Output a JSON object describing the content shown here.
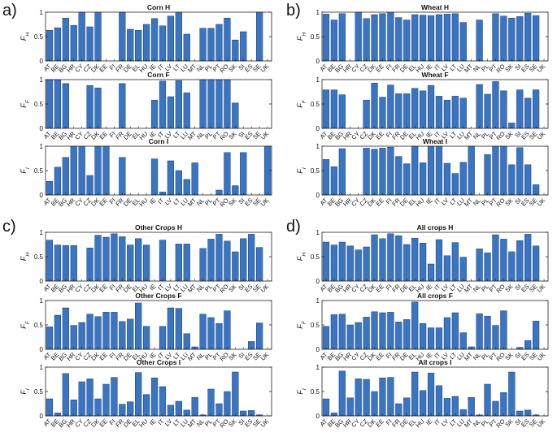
{
  "panel_letters": [
    "a)",
    "b)",
    "c)",
    "d)"
  ],
  "countries": [
    "AT",
    "BE",
    "BG",
    "HR",
    "CY",
    "CZ",
    "DK",
    "EE",
    "FI",
    "FR",
    "DE",
    "EL",
    "HU",
    "IE",
    "IT",
    "LV",
    "LT",
    "LU",
    "MT",
    "NL",
    "PL",
    "PT",
    "RO",
    "SK",
    "SI",
    "ES",
    "SE",
    "UK"
  ],
  "colors": {
    "bar": "#3a75c4",
    "bar_edge": "#1c3c6e",
    "axis": "#222222"
  },
  "chart_data": [
    {
      "type": "bar",
      "panel": "a",
      "title": "Corn H",
      "ylabel": "F_H",
      "ylim": [
        0,
        1
      ],
      "yticks": [
        0,
        0.5,
        1
      ],
      "values": [
        0.63,
        0.68,
        0.88,
        0.73,
        1.0,
        0.7,
        1.0,
        0,
        0,
        1.0,
        0.65,
        0.63,
        0.75,
        0.87,
        0.72,
        0.92,
        1.0,
        0.55,
        0,
        0.67,
        0.67,
        0.75,
        0.88,
        0.43,
        0.6,
        0,
        1.0,
        0
      ]
    },
    {
      "type": "bar",
      "panel": "a",
      "title": "Corn F",
      "ylabel": "F_F",
      "ylim": [
        0,
        1
      ],
      "yticks": [
        0,
        0.5,
        1
      ],
      "values": [
        1.0,
        1.0,
        0.92,
        0,
        0,
        0.88,
        0.83,
        0,
        0,
        0.92,
        0,
        0,
        0,
        0.58,
        0.97,
        0.65,
        0.98,
        0.73,
        0,
        1.0,
        1.0,
        1.0,
        1.0,
        0.52,
        0,
        0,
        0,
        0
      ]
    },
    {
      "type": "bar",
      "panel": "a",
      "title": "Corn I",
      "ylabel": "F_I",
      "ylim": [
        0,
        1
      ],
      "yticks": [
        0,
        0.5,
        1
      ],
      "values": [
        0.28,
        0.57,
        0.77,
        1.0,
        1.0,
        0.4,
        1.0,
        1.0,
        0,
        0.77,
        0,
        0,
        0,
        0.74,
        0.06,
        0.7,
        0.5,
        0.32,
        0.66,
        0,
        0,
        0.1,
        0.87,
        0.19,
        0.87,
        0,
        0,
        1.0
      ]
    },
    {
      "type": "bar",
      "panel": "b",
      "title": "Wheat H",
      "ylabel": "F_H",
      "ylim": [
        0,
        1
      ],
      "yticks": [
        0,
        0.5,
        1
      ],
      "values": [
        0.96,
        0.84,
        0.97,
        0,
        1.0,
        0.87,
        0.95,
        0.97,
        0.99,
        0.89,
        0.84,
        0.95,
        0.94,
        0.93,
        0.95,
        0.96,
        0.97,
        0.79,
        0,
        0.84,
        0,
        0.97,
        0.92,
        0.88,
        0.91,
        0.98,
        0.93,
        0
      ]
    },
    {
      "type": "bar",
      "panel": "b",
      "title": "Wheat F",
      "ylabel": "F_F",
      "ylim": [
        0,
        1
      ],
      "yticks": [
        0,
        0.5,
        1
      ],
      "values": [
        0.79,
        0.79,
        0.69,
        0,
        0,
        0.58,
        0.93,
        0.64,
        0.89,
        0.71,
        0.71,
        0.82,
        0.77,
        0.88,
        0.66,
        0.58,
        0.66,
        0.62,
        0,
        0.9,
        0.7,
        0.96,
        0.77,
        0.11,
        0.79,
        0.62,
        0.79,
        0
      ]
    },
    {
      "type": "bar",
      "panel": "b",
      "title": "Wheat I",
      "ylabel": "F_I",
      "ylim": [
        0,
        1
      ],
      "yticks": [
        0,
        0.5,
        1
      ],
      "values": [
        0.73,
        0.58,
        0.95,
        0,
        0,
        0.96,
        0.94,
        0.96,
        0.98,
        0.79,
        0.64,
        1.0,
        0.66,
        1.0,
        1.0,
        0.65,
        0.44,
        0.67,
        1.0,
        0,
        0.83,
        1.0,
        1.0,
        0.62,
        0.97,
        0.62,
        0.21,
        0
      ]
    },
    {
      "type": "bar",
      "panel": "c",
      "title": "Other Crops H",
      "ylabel": "F_H",
      "ylim": [
        0,
        1
      ],
      "yticks": [
        0,
        0.5,
        1
      ],
      "values": [
        0.84,
        0.74,
        0.73,
        0.73,
        0,
        0.68,
        0.94,
        0.9,
        0.97,
        0.91,
        0.74,
        0.87,
        0.74,
        0,
        0.84,
        0,
        0.76,
        0.76,
        0,
        0.67,
        0.86,
        0.96,
        0.82,
        0.6,
        0.87,
        0.96,
        0.69,
        0
      ]
    },
    {
      "type": "bar",
      "panel": "c",
      "title": "Other Crops F",
      "ylabel": "F_F",
      "ylim": [
        0,
        1
      ],
      "yticks": [
        0,
        0.5,
        1
      ],
      "values": [
        0.46,
        0.7,
        0.85,
        0.49,
        0.55,
        0.72,
        0.67,
        0.76,
        0.76,
        0.57,
        0.62,
        0.95,
        0.47,
        0,
        0.47,
        0.85,
        0.84,
        0.32,
        0.05,
        0.72,
        0.65,
        0.53,
        0.79,
        0,
        0,
        0.16,
        0.54,
        0
      ]
    },
    {
      "type": "bar",
      "panel": "c",
      "title": "Other Crops I",
      "ylabel": "F_I",
      "ylim": [
        0,
        1
      ],
      "yticks": [
        0,
        0.5,
        1
      ],
      "values": [
        0.35,
        0.06,
        0.87,
        0.33,
        0.7,
        0.76,
        0.35,
        0.65,
        0.79,
        0.24,
        0.29,
        0.89,
        0.44,
        0.78,
        0.6,
        0.22,
        0.3,
        0.12,
        0.38,
        0.02,
        0.55,
        0.25,
        0.5,
        0.9,
        0.1,
        0.11,
        0.02,
        0
      ]
    },
    {
      "type": "bar",
      "panel": "d",
      "title": "All crops H",
      "ylabel": "F_H",
      "ylim": [
        0,
        1
      ],
      "yticks": [
        0,
        0.5,
        1
      ],
      "values": [
        0.8,
        0.74,
        0.8,
        0.72,
        0.64,
        0.7,
        0.95,
        0.87,
        0.97,
        0.93,
        0.75,
        0.88,
        0.78,
        0.35,
        0.85,
        0.52,
        0.79,
        0.49,
        0,
        0.66,
        0.58,
        0.95,
        0.86,
        0.6,
        0.83,
        0.96,
        0.72,
        0
      ]
    },
    {
      "type": "bar",
      "panel": "d",
      "title": "All crops F",
      "ylabel": "F_F",
      "ylim": [
        0,
        1
      ],
      "yticks": [
        0,
        0.5,
        1
      ],
      "values": [
        0.47,
        0.71,
        0.72,
        0.5,
        0.55,
        0.66,
        0.77,
        0.75,
        0.76,
        0.56,
        0.61,
        0.97,
        0.53,
        0.44,
        0.44,
        0.65,
        0.75,
        0.34,
        0.05,
        0.73,
        0.68,
        0.49,
        0.79,
        0,
        0.04,
        0.18,
        0.58,
        0
      ]
    },
    {
      "type": "bar",
      "panel": "d",
      "title": "All crops I",
      "ylabel": "F_I",
      "ylim": [
        0,
        1
      ],
      "yticks": [
        0,
        0.5,
        1
      ],
      "values": [
        0.35,
        0.06,
        0.92,
        0.37,
        0.76,
        0.75,
        0.5,
        0.78,
        0.79,
        0.25,
        0.37,
        0.9,
        0.52,
        0.88,
        0.62,
        0.36,
        0.4,
        0.13,
        0.38,
        0.02,
        0.65,
        0.3,
        0.48,
        0.9,
        0.1,
        0.12,
        0.02,
        0
      ]
    }
  ]
}
